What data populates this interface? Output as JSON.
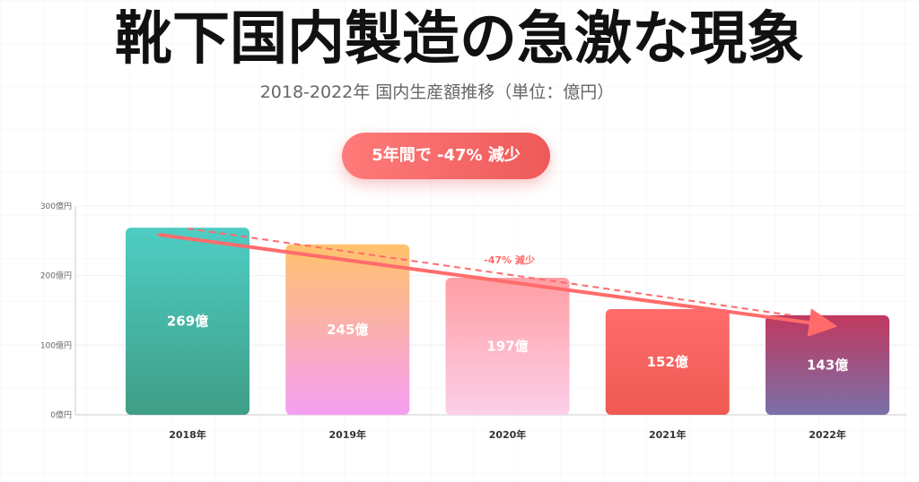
{
  "chart_data": {
    "type": "bar",
    "title": "靴下国内製造の急激な現象",
    "subtitle": "2018-2022年 国内生産額推移（単位：億円）",
    "categories": [
      "2018年",
      "2019年",
      "2020年",
      "2021年",
      "2022年"
    ],
    "values": [
      269,
      245,
      197,
      152,
      143
    ],
    "data_labels": [
      "269億",
      "245億",
      "197億",
      "152億",
      "143億"
    ],
    "ylim": [
      0,
      300
    ],
    "yticks": [
      0,
      100,
      200,
      300
    ],
    "ytick_labels": [
      "0億円",
      "100億円",
      "200億円",
      "300億円"
    ],
    "xlabel": "",
    "ylabel": "",
    "grid": true,
    "trend": {
      "show": true,
      "annotation": "-47% 減少"
    },
    "bar_gradients": [
      [
        "#4ecdc4",
        "#3f9e86"
      ],
      [
        "#ffc26b",
        "#f59ef3"
      ],
      [
        "#ff9ea3",
        "#fccfe9"
      ],
      [
        "#ff6b6b",
        "#ee5a52"
      ],
      [
        "#c0395f",
        "#7a70a8"
      ]
    ]
  },
  "badge": {
    "text": "5年間で -47% 減少"
  },
  "colors": {
    "accent": "#ff6b6b",
    "badge_start": "#ff7a7a",
    "badge_end": "#ee5a5a",
    "title": "#111111",
    "subtitle": "#666666",
    "axis": "#dddddd",
    "gridline": "#f0f0f0",
    "bar_label": "#ffffff",
    "x_label": "#333333"
  }
}
